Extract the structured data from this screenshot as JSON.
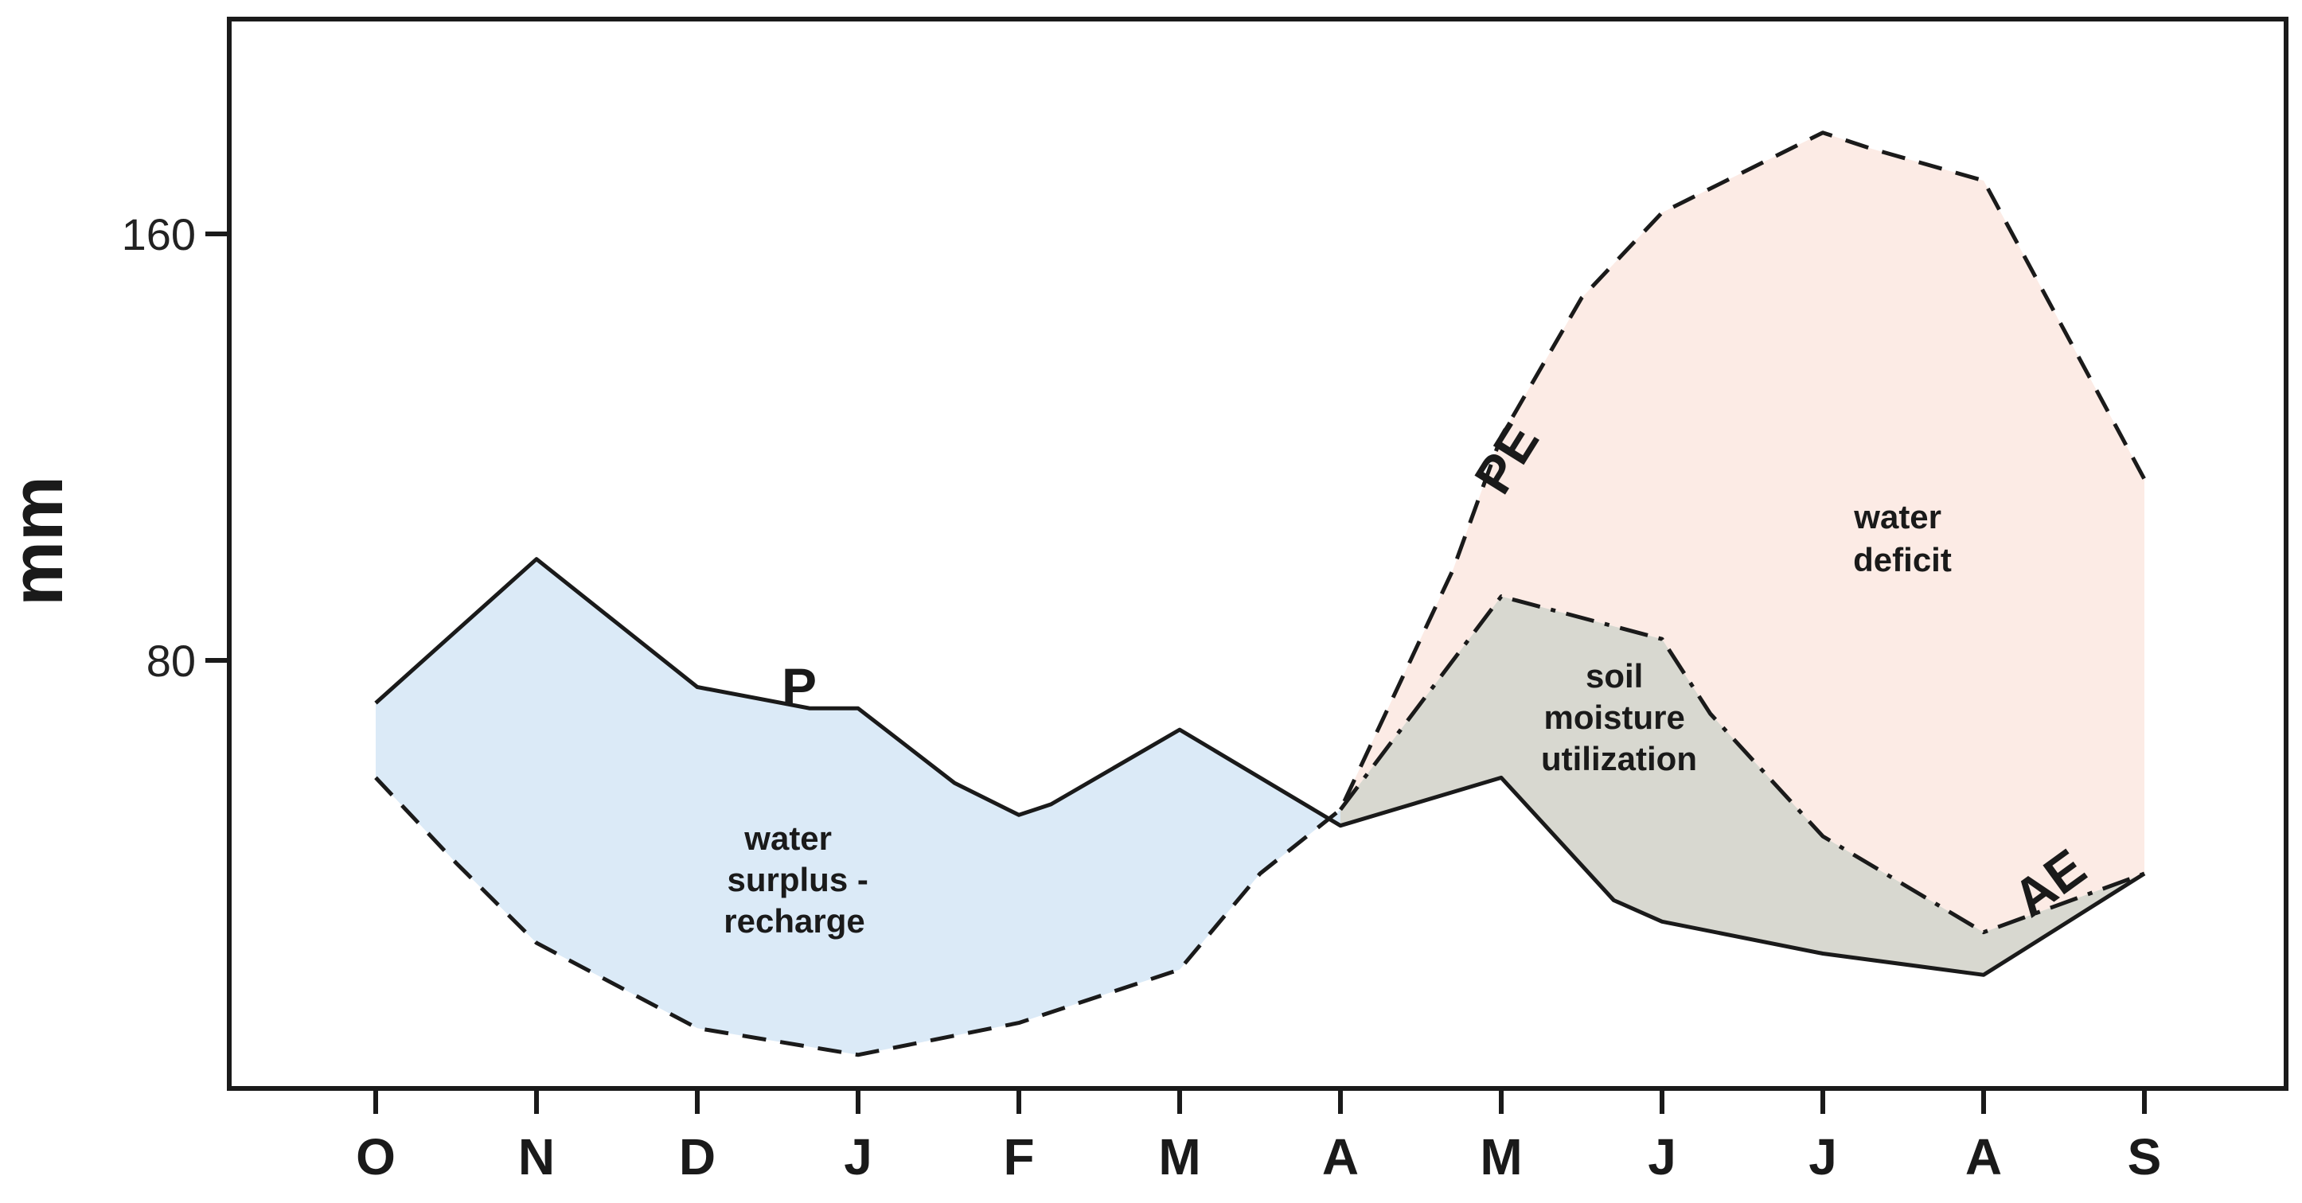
{
  "chart_data": {
    "type": "line",
    "ylabel": "mm",
    "xlabel": "",
    "ylim": [
      0,
      200
    ],
    "y_ticks": [
      80,
      160
    ],
    "categories": [
      "O",
      "N",
      "D",
      "J",
      "F",
      "M",
      "A",
      "M",
      "J",
      "J",
      "A",
      "S"
    ],
    "series": [
      {
        "name": "P",
        "style": "solid",
        "x": [
          0,
          1,
          1.5,
          2,
          2.7,
          3,
          3.6,
          4,
          4.2,
          5,
          6,
          7,
          7.7,
          8,
          9,
          10,
          11
        ],
        "values": [
          72,
          99,
          87,
          75,
          71,
          71,
          57,
          51,
          53,
          67,
          49,
          58,
          35,
          31,
          25,
          21,
          40
        ]
      },
      {
        "name": "PE",
        "style": "dashed",
        "x": [
          0,
          0.5,
          1,
          2,
          3,
          4,
          5,
          5.5,
          6,
          6.7,
          7,
          7.5,
          8,
          9,
          9.3,
          10,
          11
        ],
        "values": [
          58,
          42,
          27,
          11,
          6,
          12,
          22,
          40,
          52,
          97,
          122,
          148,
          164,
          179,
          176,
          170,
          114
        ]
      },
      {
        "name": "AE",
        "style": "dash-dot",
        "x": [
          6,
          7,
          8,
          8.3,
          9,
          10,
          11
        ],
        "values": [
          52,
          92,
          84,
          70,
          47,
          29,
          40
        ]
      }
    ],
    "labels": {
      "P": "P",
      "PE": "PE",
      "AE": "AE"
    },
    "regions": [
      {
        "name": "water surplus - recharge",
        "lines": [
          "water",
          "surplus -",
          "recharge"
        ],
        "color": "#dbeaf7"
      },
      {
        "name": "soil moisture utilization",
        "lines": [
          "soil",
          "moisture",
          "utilization"
        ],
        "color": "#d8d8d0"
      },
      {
        "name": "water deficit",
        "lines": [
          "water",
          "deficit"
        ],
        "color": "#fcebe5"
      }
    ]
  }
}
